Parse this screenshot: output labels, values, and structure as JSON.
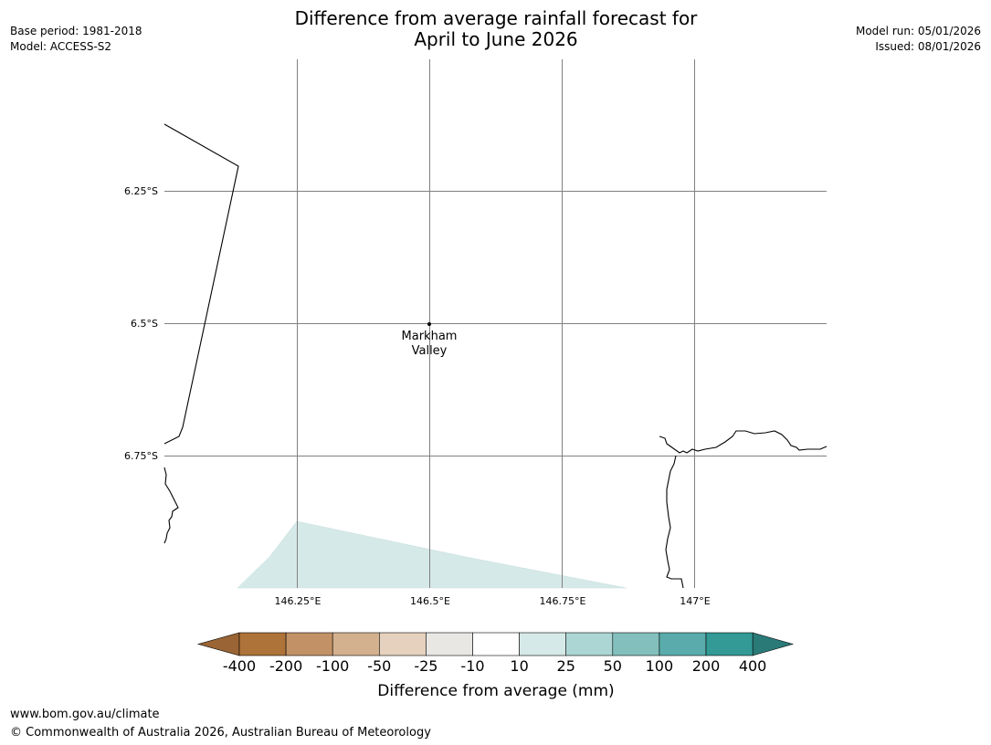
{
  "title": {
    "line1": "Difference from average rainfall forecast for",
    "line2": "April to June 2026"
  },
  "meta_left": {
    "base_period": "Base period: 1981-2018",
    "model": "Model: ACCESS-S2"
  },
  "meta_right": {
    "model_run": "Model run: 05/01/2026",
    "issued": "Issued: 08/01/2026"
  },
  "map": {
    "lat_labels": [
      "6.25°S",
      "6.5°S",
      "6.75°S"
    ],
    "lon_labels": [
      "146.25°E",
      "146.5°E",
      "146.75°E",
      "147°E"
    ],
    "place": {
      "line1": "Markham",
      "line2": "Valley"
    },
    "shaded_region_color": "#d5e9e8"
  },
  "colorbar": {
    "title": "Difference from average (mm)",
    "labels": [
      "-400",
      "-200",
      "-100",
      "-50",
      "-25",
      "-10",
      "10",
      "25",
      "50",
      "100",
      "200",
      "400"
    ],
    "colors": [
      "#ad7339",
      "#c29266",
      "#d3b08e",
      "#e5d1bd",
      "#e9e7e4",
      "#ffffff",
      "#d5e9e8",
      "#acd6d4",
      "#83c0bd",
      "#59acab",
      "#339a96"
    ],
    "extend_low_color": "#9a6434",
    "extend_high_color": "#2a7a78"
  },
  "footer": {
    "url": "www.bom.gov.au/climate",
    "copyright": "© Commonwealth of Australia 2026, Australian Bureau of Meteorology"
  }
}
